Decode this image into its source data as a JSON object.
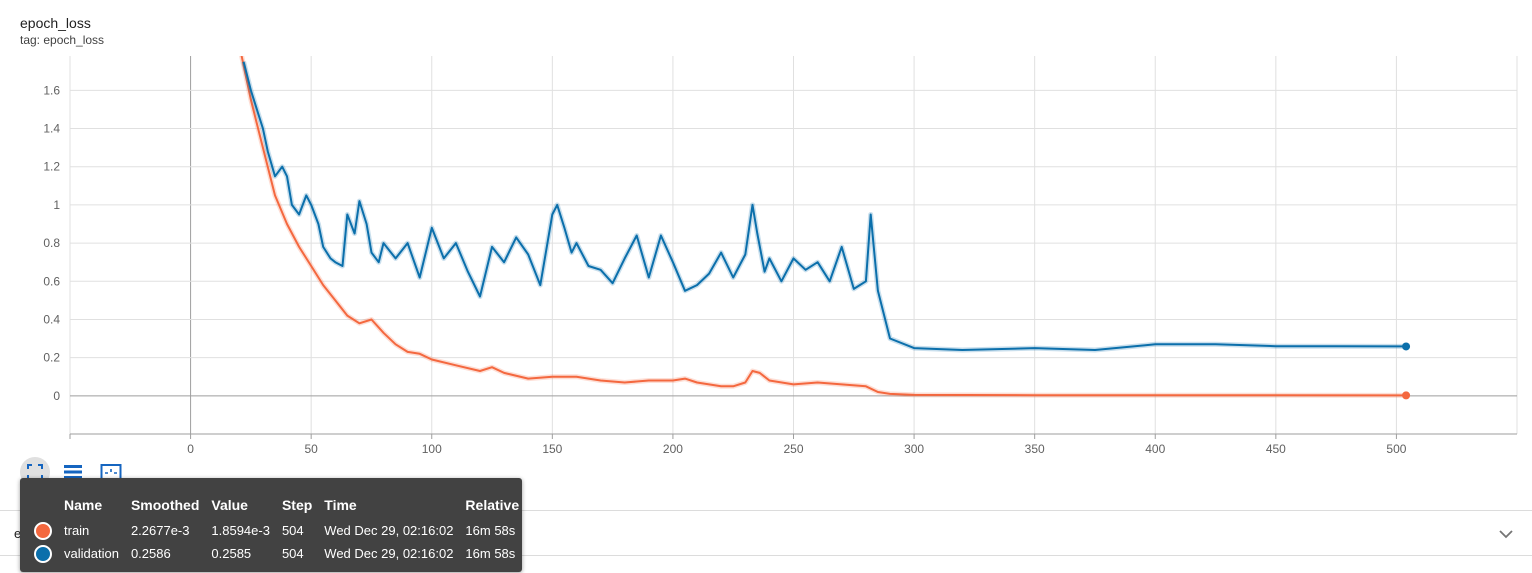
{
  "card": {
    "title": "epoch_loss",
    "tag": "tag: epoch_loss"
  },
  "next_card": {
    "title": "epoch_lr"
  },
  "toolbar": {
    "buttons": [
      {
        "icon": "fit-domain-icon",
        "active": true
      },
      {
        "icon": "list-icon",
        "active": false
      },
      {
        "icon": "download-image-icon",
        "active": false
      }
    ]
  },
  "tooltip": {
    "headers": [
      "Name",
      "Smoothed",
      "Value",
      "Step",
      "Time",
      "Relative"
    ],
    "rows": [
      {
        "color": "#f4683f",
        "name": "train",
        "smoothed": "2.2677e-3",
        "value": "1.8594e-3",
        "step": "504",
        "time": "Wed Dec 29, 02:16:02",
        "relative": "16m 58s"
      },
      {
        "color": "#0b6fab",
        "name": "validation",
        "smoothed": "0.2586",
        "value": "0.2585",
        "step": "504",
        "time": "Wed Dec 29, 02:16:02",
        "relative": "16m 58s"
      }
    ]
  },
  "colors": {
    "train": "#f4683f",
    "validation": "#0b6fab",
    "grid": "#e0e0e0",
    "axis": "#9e9e9e"
  },
  "chart_data": {
    "type": "line",
    "title": "epoch_loss",
    "xlim": [
      -50,
      550
    ],
    "ylim": [
      -0.2,
      1.78
    ],
    "x_ticks": [
      0,
      50,
      100,
      150,
      200,
      250,
      300,
      350,
      400,
      450,
      500
    ],
    "x_tick_labels": [
      "0",
      "50",
      "100",
      "150",
      "200",
      "250",
      "300",
      "350",
      "400",
      "450",
      "500"
    ],
    "y_ticks": [
      0,
      0.2,
      0.4,
      0.6,
      0.8,
      1.0,
      1.2,
      1.4,
      1.6
    ],
    "y_tick_labels": [
      "0",
      "0.2",
      "0.4",
      "0.6",
      "0.8",
      "1",
      "1.2",
      "1.4",
      "1.6"
    ],
    "grid": true,
    "series": [
      {
        "name": "train",
        "color": "#f4683f",
        "x": [
          20,
          25,
          30,
          35,
          40,
          45,
          50,
          55,
          60,
          65,
          70,
          75,
          80,
          85,
          90,
          95,
          100,
          110,
          120,
          125,
          130,
          140,
          150,
          160,
          170,
          180,
          190,
          200,
          205,
          210,
          220,
          225,
          230,
          233,
          236,
          240,
          250,
          260,
          270,
          280,
          285,
          290,
          300,
          350,
          400,
          450,
          504
        ],
        "y": [
          1.85,
          1.55,
          1.3,
          1.05,
          0.9,
          0.78,
          0.68,
          0.58,
          0.5,
          0.42,
          0.38,
          0.4,
          0.33,
          0.27,
          0.23,
          0.22,
          0.19,
          0.16,
          0.13,
          0.15,
          0.12,
          0.09,
          0.1,
          0.1,
          0.08,
          0.07,
          0.08,
          0.08,
          0.09,
          0.07,
          0.05,
          0.05,
          0.07,
          0.13,
          0.12,
          0.08,
          0.06,
          0.07,
          0.06,
          0.05,
          0.02,
          0.01,
          0.005,
          0.003,
          0.003,
          0.003,
          0.0023
        ]
      },
      {
        "name": "validation",
        "color": "#0b6fab",
        "x": [
          22,
          25,
          28,
          30,
          32,
          35,
          38,
          40,
          42,
          45,
          48,
          50,
          53,
          55,
          58,
          60,
          63,
          65,
          68,
          70,
          73,
          75,
          78,
          80,
          85,
          90,
          95,
          100,
          105,
          110,
          115,
          120,
          125,
          130,
          135,
          140,
          145,
          150,
          152,
          155,
          158,
          160,
          165,
          170,
          175,
          180,
          185,
          190,
          195,
          200,
          205,
          210,
          215,
          220,
          225,
          230,
          233,
          235,
          238,
          240,
          245,
          250,
          255,
          260,
          265,
          270,
          275,
          280,
          282,
          285,
          290,
          300,
          320,
          350,
          375,
          400,
          425,
          450,
          475,
          504
        ],
        "y": [
          1.75,
          1.6,
          1.48,
          1.4,
          1.28,
          1.15,
          1.2,
          1.15,
          1.0,
          0.95,
          1.05,
          1.0,
          0.9,
          0.78,
          0.72,
          0.7,
          0.68,
          0.95,
          0.85,
          1.02,
          0.9,
          0.75,
          0.7,
          0.8,
          0.72,
          0.8,
          0.62,
          0.88,
          0.72,
          0.8,
          0.65,
          0.52,
          0.78,
          0.7,
          0.83,
          0.74,
          0.58,
          0.95,
          1.0,
          0.88,
          0.75,
          0.8,
          0.68,
          0.66,
          0.59,
          0.72,
          0.84,
          0.62,
          0.84,
          0.7,
          0.55,
          0.58,
          0.64,
          0.75,
          0.62,
          0.74,
          1.0,
          0.85,
          0.65,
          0.72,
          0.6,
          0.72,
          0.66,
          0.7,
          0.6,
          0.78,
          0.56,
          0.6,
          0.95,
          0.55,
          0.3,
          0.25,
          0.24,
          0.25,
          0.24,
          0.27,
          0.27,
          0.26,
          0.26,
          0.2586
        ]
      }
    ]
  }
}
